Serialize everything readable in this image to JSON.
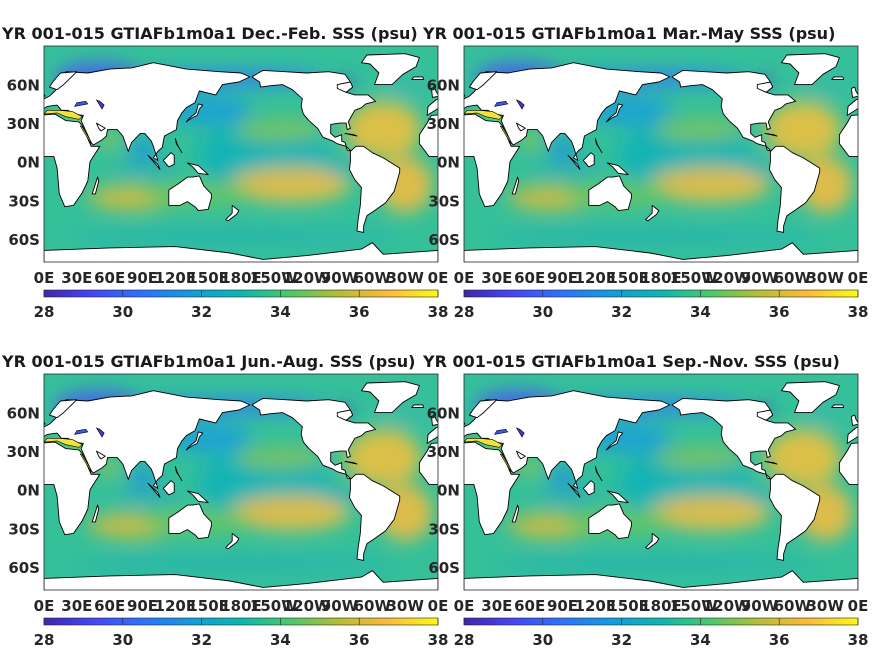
{
  "figure": {
    "layout": "2x2 seasonal maps"
  },
  "chart_data": [
    {
      "type": "heatmap",
      "title": "YR 001-015 GTIAFb1m0a1 Dec.-Feb. SSS (psu)",
      "season": "Dec.-Feb.",
      "field": "sea surface salinity",
      "units": "psu",
      "lat_ticks": [
        "60N",
        "30N",
        "0N",
        "30S",
        "60S"
      ],
      "lat_values": [
        60,
        30,
        0,
        -30,
        -60
      ],
      "lon_ticks": [
        "0E",
        "30E",
        "60E",
        "90E",
        "120E",
        "150E",
        "180E",
        "150W",
        "120W",
        "90W",
        "60W",
        "30W",
        "0E"
      ],
      "lon_values": [
        0,
        30,
        60,
        90,
        120,
        150,
        180,
        210,
        240,
        270,
        300,
        330,
        360
      ],
      "xlim": [
        0,
        360
      ],
      "ylim": [
        -78,
        90
      ],
      "colorbar": {
        "ticks": [
          "28",
          "30",
          "32",
          "34",
          "36",
          "38"
        ],
        "range": [
          28,
          38
        ],
        "colormap": "parula"
      }
    },
    {
      "type": "heatmap",
      "title": "YR 001-015 GTIAFb1m0a1 Mar.-May SSS (psu)",
      "season": "Mar.-May",
      "field": "sea surface salinity",
      "units": "psu",
      "lat_ticks": [
        "60N",
        "30N",
        "0N",
        "30S",
        "60S"
      ],
      "lat_values": [
        60,
        30,
        0,
        -30,
        -60
      ],
      "lon_ticks": [
        "0E",
        "30E",
        "60E",
        "90E",
        "120E",
        "150E",
        "180E",
        "150W",
        "120W",
        "90W",
        "60W",
        "30W",
        "0E"
      ],
      "lon_values": [
        0,
        30,
        60,
        90,
        120,
        150,
        180,
        210,
        240,
        270,
        300,
        330,
        360
      ],
      "xlim": [
        0,
        360
      ],
      "ylim": [
        -78,
        90
      ],
      "colorbar": {
        "ticks": [
          "28",
          "30",
          "32",
          "34",
          "36",
          "38"
        ],
        "range": [
          28,
          38
        ],
        "colormap": "parula"
      }
    },
    {
      "type": "heatmap",
      "title": "YR 001-015 GTIAFb1m0a1 Jun.-Aug. SSS (psu)",
      "season": "Jun.-Aug.",
      "field": "sea surface salinity",
      "units": "psu",
      "lat_ticks": [
        "60N",
        "30N",
        "0N",
        "30S",
        "60S"
      ],
      "lat_values": [
        60,
        30,
        0,
        -30,
        -60
      ],
      "lon_ticks": [
        "0E",
        "30E",
        "60E",
        "90E",
        "120E",
        "150E",
        "180E",
        "150W",
        "120W",
        "90W",
        "60W",
        "30W",
        "0E"
      ],
      "lon_values": [
        0,
        30,
        60,
        90,
        120,
        150,
        180,
        210,
        240,
        270,
        300,
        330,
        360
      ],
      "xlim": [
        0,
        360
      ],
      "ylim": [
        -78,
        90
      ],
      "colorbar": {
        "ticks": [
          "28",
          "30",
          "32",
          "34",
          "36",
          "38"
        ],
        "range": [
          28,
          38
        ],
        "colormap": "parula"
      }
    },
    {
      "type": "heatmap",
      "title": "YR 001-015 GTIAFb1m0a1 Sep.-Nov. SSS (psu)",
      "season": "Sep.-Nov.",
      "field": "sea surface salinity",
      "units": "psu",
      "lat_ticks": [
        "60N",
        "30N",
        "0N",
        "30S",
        "60S"
      ],
      "lat_values": [
        60,
        30,
        0,
        -30,
        -60
      ],
      "lon_ticks": [
        "0E",
        "30E",
        "60E",
        "90E",
        "120E",
        "150E",
        "180E",
        "150W",
        "120W",
        "90W",
        "60W",
        "30W",
        "0E"
      ],
      "lon_values": [
        0,
        30,
        60,
        90,
        120,
        150,
        180,
        210,
        240,
        270,
        300,
        330,
        360
      ],
      "xlim": [
        0,
        360
      ],
      "ylim": [
        -78,
        90
      ],
      "colorbar": {
        "ticks": [
          "28",
          "30",
          "32",
          "34",
          "36",
          "38"
        ],
        "range": [
          28,
          38
        ],
        "colormap": "parula"
      }
    }
  ]
}
